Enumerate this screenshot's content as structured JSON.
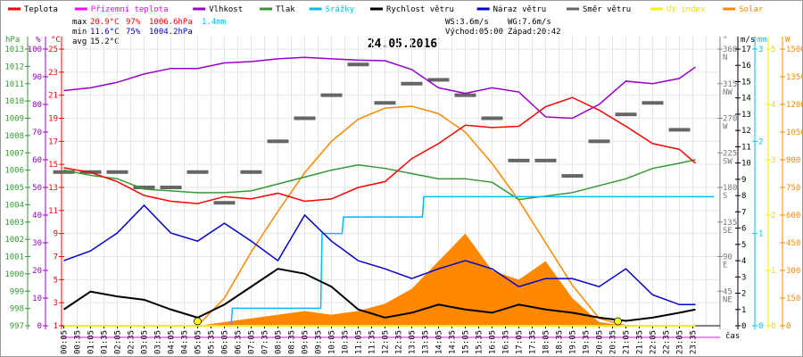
{
  "chart_data": {
    "type": "line",
    "title": "24.05.2016",
    "legend": [
      {
        "name": "Teplota",
        "color": "#ff0000"
      },
      {
        "name": "Přízemní teplota",
        "color": "#ff00ff"
      },
      {
        "name": "Vlhkost",
        "color": "#9900cc"
      },
      {
        "name": "Tlak",
        "color": "#339933"
      },
      {
        "name": "Srážky",
        "color": "#00bbee"
      },
      {
        "name": "Rychlost větru",
        "color": "#000000"
      },
      {
        "name": "Náraz větru",
        "color": "#0000cc"
      },
      {
        "name": "Směr větru",
        "color": "#666666"
      },
      {
        "name": "UV index",
        "color": "#ffee00"
      },
      {
        "name": "Solar",
        "color": "#ff8800"
      }
    ],
    "stats": {
      "max_label": "max",
      "max_temp": "20.9°C",
      "max_hum": "97%",
      "max_press": "1006.6hPa",
      "rain": "1.4mm",
      "min_label": "min",
      "min_temp": "11.6°C",
      "min_hum": "75%",
      "min_press": "1004.2hPa",
      "avg_label": "avg",
      "avg_temp": "15.2°C",
      "ws": "WS:3.6m/s",
      "wg": "WG:7.6m/s",
      "sunrise": "Východ:05:00",
      "sunset": "Západ:20:42"
    },
    "axes": {
      "hpa": {
        "unit": "hPa",
        "range": [
          997,
          1013
        ],
        "ticks": [
          997,
          998,
          999,
          1000,
          1001,
          1002,
          1003,
          1004,
          1005,
          1006,
          1007,
          1008,
          1009,
          1010,
          1011,
          1012,
          1013
        ]
      },
      "pct": {
        "unit": "%",
        "range": [
          0,
          100
        ],
        "ticks": [
          0,
          10,
          20,
          30,
          40,
          50,
          60,
          70,
          80,
          90,
          100
        ]
      },
      "temp": {
        "unit": "°C",
        "range": [
          1,
          25
        ],
        "ticks": [
          1,
          3,
          5,
          7,
          9,
          11,
          13,
          15,
          17,
          19,
          21,
          23,
          25
        ]
      },
      "dir": {
        "unit": "°",
        "range": [
          0,
          360
        ],
        "ticks": [
          {
            "v": 45,
            "l": "NE"
          },
          {
            "v": 90,
            "l": "E"
          },
          {
            "v": 135,
            "l": "SE"
          },
          {
            "v": 180,
            "l": "S"
          },
          {
            "v": 225,
            "l": "SW"
          },
          {
            "v": 270,
            "l": "W"
          },
          {
            "v": 315,
            "l": "NW"
          },
          {
            "v": 360,
            "l": "N"
          }
        ]
      },
      "ms": {
        "unit": "m/s",
        "range": [
          0,
          17
        ],
        "ticks": [
          0,
          1,
          2,
          3,
          4,
          5,
          6,
          7,
          8,
          9,
          10,
          11,
          12,
          13,
          14,
          15,
          16,
          17
        ]
      },
      "mm": {
        "unit": "mm",
        "range": [
          0,
          3
        ],
        "ticks": [
          0,
          1,
          2,
          3
        ]
      },
      "uv": {
        "range": [
          0,
          5
        ],
        "ticks": [
          0,
          1,
          2,
          3,
          4,
          5
        ]
      },
      "w": {
        "unit": "W",
        "range": [
          0,
          1500
        ],
        "ticks": [
          0,
          150,
          300,
          450,
          600,
          750,
          900,
          1050,
          1200,
          1350,
          1500
        ]
      },
      "xlabel": "čas",
      "xticks": [
        "00:05",
        "00:35",
        "01:05",
        "01:35",
        "02:05",
        "02:35",
        "03:05",
        "03:35",
        "04:05",
        "04:35",
        "05:05",
        "05:35",
        "06:05",
        "06:35",
        "07:05",
        "07:35",
        "08:05",
        "08:35",
        "09:05",
        "09:35",
        "10:05",
        "10:35",
        "11:05",
        "11:35",
        "12:05",
        "12:35",
        "13:05",
        "13:35",
        "14:05",
        "14:35",
        "15:05",
        "15:35",
        "16:05",
        "16:35",
        "17:05",
        "17:35",
        "18:05",
        "18:35",
        "19:05",
        "19:35",
        "20:05",
        "20:35",
        "21:05",
        "21:35",
        "22:05",
        "22:35",
        "23:05",
        "23:35"
      ]
    },
    "hours": [
      0,
      1,
      2,
      3,
      4,
      5,
      6,
      7,
      8,
      9,
      10,
      11,
      12,
      13,
      14,
      15,
      16,
      17,
      18,
      19,
      20,
      21,
      22,
      23,
      23.6
    ],
    "series": {
      "temp": [
        14.7,
        14.3,
        13.5,
        12.3,
        11.8,
        11.6,
        12.2,
        12.0,
        12.5,
        11.8,
        12.0,
        13.0,
        13.5,
        15.5,
        16.8,
        18.4,
        18.2,
        18.3,
        20.0,
        20.8,
        19.7,
        18.3,
        16.8,
        16.3,
        15.1
      ],
      "hum": [
        85,
        86,
        88,
        91,
        93,
        93,
        95,
        95.5,
        96.5,
        97,
        96.5,
        96,
        95.8,
        92.6,
        86,
        84,
        86,
        84.5,
        75.5,
        75,
        80,
        88.4,
        87.5,
        89.4,
        93.5
      ],
      "press": [
        1006.0,
        1005.7,
        1005.5,
        1004.9,
        1004.8,
        1004.7,
        1004.7,
        1004.8,
        1005.2,
        1005.6,
        1006.0,
        1006.3,
        1006.1,
        1005.8,
        1005.5,
        1005.5,
        1005.3,
        1004.3,
        1004.5,
        1004.7,
        1005.1,
        1005.5,
        1006.1,
        1006.4,
        1006.6
      ],
      "wind": [
        1.0,
        2.1,
        1.8,
        1.6,
        1.0,
        0.5,
        1.3,
        2.4,
        3.5,
        3.2,
        2.4,
        1.0,
        0.5,
        0.8,
        1.3,
        1.0,
        0.8,
        1.3,
        1.0,
        0.8,
        0.5,
        0.3,
        0.5,
        0.8,
        1.0
      ],
      "gust": [
        4.0,
        4.6,
        5.7,
        7.4,
        5.7,
        5.2,
        6.3,
        5.2,
        4.0,
        6.8,
        5.2,
        4.0,
        3.5,
        2.9,
        3.5,
        4.0,
        3.5,
        2.4,
        2.9,
        2.9,
        2.4,
        3.5,
        1.9,
        1.3,
        1.3
      ],
      "dir": [
        200,
        200,
        200,
        180,
        180,
        200,
        160,
        200,
        240,
        270,
        300,
        340,
        290,
        315,
        320,
        300,
        270,
        215,
        215,
        195,
        240,
        275,
        290,
        255,
        255
      ],
      "solar_max": [
        0,
        0,
        0,
        0,
        0,
        0,
        150,
        400,
        620,
        830,
        1000,
        1120,
        1180,
        1190,
        1150,
        1050,
        880,
        680,
        450,
        220,
        40,
        0,
        0,
        0,
        0
      ],
      "solar": [
        0,
        0,
        0,
        0,
        0,
        0,
        20,
        40,
        60,
        80,
        60,
        80,
        120,
        200,
        350,
        500,
        300,
        250,
        350,
        150,
        20,
        0,
        0,
        0,
        0
      ],
      "uv": [
        0,
        0,
        0,
        0,
        0,
        0,
        0,
        0,
        0,
        0,
        0,
        0,
        0,
        0,
        0,
        0,
        0,
        0,
        0,
        0,
        0,
        0,
        0,
        0,
        0
      ],
      "rain_cum": [
        [
          0,
          0
        ],
        [
          6.25,
          0
        ],
        [
          6.3,
          0.19
        ],
        [
          9.6,
          0.19
        ],
        [
          9.65,
          1.0
        ],
        [
          10.4,
          1.0
        ],
        [
          10.45,
          1.18
        ],
        [
          13.4,
          1.18
        ],
        [
          13.45,
          1.4
        ],
        [
          24.3,
          1.4
        ]
      ],
      "sun_markers": [
        5.0,
        20.7
      ]
    }
  }
}
